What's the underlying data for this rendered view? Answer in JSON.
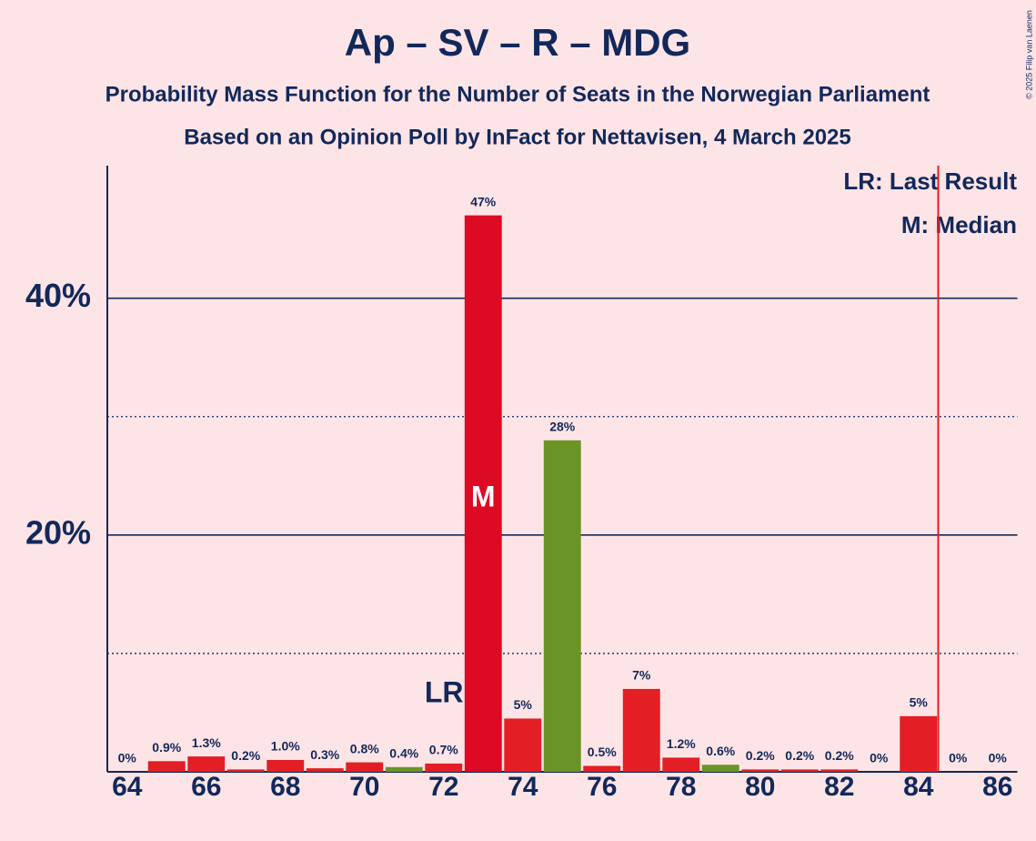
{
  "chart_data": {
    "type": "bar",
    "title": "Ap – SV – R – MDG",
    "subtitle": "Probability Mass Function for the Number of Seats in the Norwegian Parliament",
    "subtitle2": "Based on an Opinion Poll by InFact for Nettavisen, 4 March 2025",
    "copyright": "© 2025 Filip van Laenen",
    "legend": [
      "LR: Last Result",
      "M: Median"
    ],
    "x": [
      64,
      65,
      66,
      67,
      68,
      69,
      70,
      71,
      72,
      73,
      74,
      75,
      76,
      77,
      78,
      79,
      80,
      81,
      82,
      83,
      84,
      85,
      86
    ],
    "values": [
      0,
      0.9,
      1.3,
      0.2,
      1.0,
      0.3,
      0.8,
      0.4,
      0.7,
      47,
      4.5,
      28,
      0.5,
      7,
      1.2,
      0.6,
      0.2,
      0.2,
      0.2,
      0,
      4.7,
      0,
      0
    ],
    "value_labels": [
      "0%",
      "0.9%",
      "1.3%",
      "0.2%",
      "1.0%",
      "0.3%",
      "0.8%",
      "0.4%",
      "0.7%",
      "47%",
      "5%",
      "28%",
      "0.5%",
      "7%",
      "1.2%",
      "0.6%",
      "0.2%",
      "0.2%",
      "0.2%",
      "0%",
      "5%",
      "0%",
      "0%"
    ],
    "colors": [
      "#e31e24",
      "#e31e24",
      "#e31e24",
      "#e31e24",
      "#e31e24",
      "#e31e24",
      "#e31e24",
      "#6b9426",
      "#e31e24",
      "#dc0a22",
      "#e31e24",
      "#6b9426",
      "#e31e24",
      "#e31e24",
      "#e31e24",
      "#6b9426",
      "#e31e24",
      "#e31e24",
      "#e31e24",
      "#e31e24",
      "#e31e24",
      "#e31e24",
      "#e31e24"
    ],
    "xlim": [
      63.5,
      86.5
    ],
    "xticks": [
      64,
      66,
      68,
      70,
      72,
      74,
      76,
      78,
      80,
      82,
      84,
      86
    ],
    "ylim": [
      0,
      51.2
    ],
    "yticks": [
      {
        "value": 20,
        "label": "20%"
      },
      {
        "value": 40,
        "label": "40%"
      }
    ],
    "minor_yticks": [
      10,
      30
    ],
    "majority_line": 84.5,
    "last_result": {
      "x": 73,
      "label": "LR"
    },
    "median": {
      "x": 73,
      "label": "M"
    }
  }
}
